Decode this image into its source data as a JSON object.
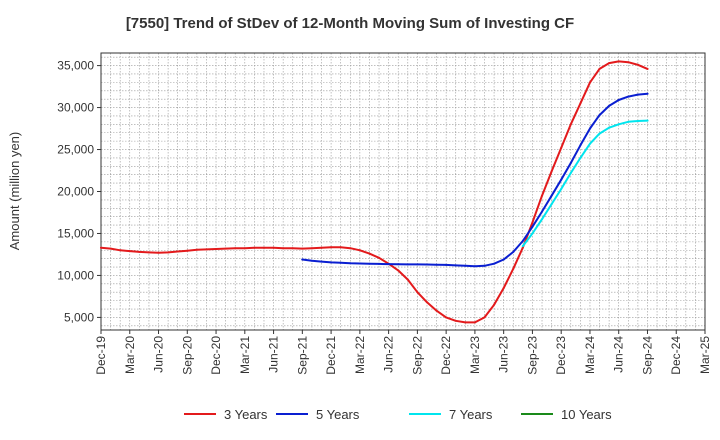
{
  "chart_data": {
    "type": "line",
    "title": "[7550]  Trend of StDev of 12-Month Moving Sum of Investing CF",
    "ylabel": "Amount (million yen)",
    "xlabel": "",
    "ylim": [
      3500,
      36500
    ],
    "yticks": [
      5000,
      10000,
      15000,
      20000,
      25000,
      30000,
      35000
    ],
    "ytick_labels": [
      "5,000",
      "10,000",
      "15,000",
      "20,000",
      "25,000",
      "30,000",
      "35,000"
    ],
    "categories": [
      "Dec-19",
      "Mar-20",
      "Jun-20",
      "Sep-20",
      "Dec-20",
      "Mar-21",
      "Jun-21",
      "Sep-21",
      "Dec-21",
      "Mar-22",
      "Jun-22",
      "Sep-22",
      "Dec-22",
      "Mar-23",
      "Jun-23",
      "Sep-23",
      "Dec-23",
      "Mar-24",
      "Jun-24",
      "Sep-24",
      "Dec-24",
      "Mar-25"
    ],
    "grid": true,
    "legend_position": "bottom",
    "series": [
      {
        "name": "3 Years",
        "color": "#e31a1c",
        "x": [
          "Dec-19",
          "Jan-20",
          "Feb-20",
          "Mar-20",
          "Apr-20",
          "May-20",
          "Jun-20",
          "Jul-20",
          "Aug-20",
          "Sep-20",
          "Oct-20",
          "Nov-20",
          "Dec-20",
          "Jan-21",
          "Feb-21",
          "Mar-21",
          "Apr-21",
          "May-21",
          "Jun-21",
          "Jul-21",
          "Aug-21",
          "Sep-21",
          "Oct-21",
          "Nov-21",
          "Dec-21",
          "Jan-22",
          "Feb-22",
          "Mar-22",
          "Apr-22",
          "May-22",
          "Jun-22",
          "Jul-22",
          "Aug-22",
          "Sep-22",
          "Oct-22",
          "Nov-22",
          "Dec-22",
          "Jan-23",
          "Feb-23",
          "Mar-23",
          "Apr-23",
          "May-23",
          "Jun-23",
          "Jul-23",
          "Aug-23",
          "Sep-23",
          "Oct-23",
          "Nov-23",
          "Dec-23",
          "Jan-24",
          "Feb-24",
          "Mar-24",
          "Apr-24",
          "May-24",
          "Jun-24",
          "Jul-24",
          "Aug-24",
          "Sep-24"
        ],
        "values": [
          13300,
          13200,
          13000,
          12900,
          12800,
          12750,
          12700,
          12750,
          12850,
          12950,
          13050,
          13100,
          13150,
          13200,
          13250,
          13250,
          13300,
          13300,
          13300,
          13250,
          13250,
          13200,
          13250,
          13300,
          13350,
          13350,
          13250,
          13000,
          12600,
          12100,
          11400,
          10600,
          9500,
          8000,
          6800,
          5800,
          5000,
          4600,
          4400,
          4400,
          5000,
          6500,
          8500,
          10800,
          13300,
          16300,
          19500,
          22400,
          25200,
          28000,
          30500,
          33000,
          34600,
          35300,
          35500,
          35400,
          35100,
          34600
        ]
      },
      {
        "name": "5 Years",
        "color": "#0a1fd1",
        "x": [
          "Sep-21",
          "Oct-21",
          "Nov-21",
          "Dec-21",
          "Jan-22",
          "Feb-22",
          "Mar-22",
          "Apr-22",
          "May-22",
          "Jun-22",
          "Jul-22",
          "Aug-22",
          "Sep-22",
          "Oct-22",
          "Nov-22",
          "Dec-22",
          "Jan-23",
          "Feb-23",
          "Mar-23",
          "Apr-23",
          "May-23",
          "Jun-23",
          "Jul-23",
          "Aug-23",
          "Sep-23",
          "Oct-23",
          "Nov-23",
          "Dec-23",
          "Jan-24",
          "Feb-24",
          "Mar-24",
          "Apr-24",
          "May-24",
          "Jun-24",
          "Jul-24",
          "Aug-24",
          "Sep-24"
        ],
        "values": [
          11900,
          11750,
          11650,
          11550,
          11500,
          11450,
          11420,
          11400,
          11380,
          11350,
          11330,
          11320,
          11310,
          11300,
          11280,
          11250,
          11200,
          11150,
          11100,
          11150,
          11400,
          11900,
          12800,
          14100,
          15800,
          17600,
          19500,
          21400,
          23400,
          25500,
          27500,
          29100,
          30200,
          30900,
          31300,
          31550,
          31650
        ]
      },
      {
        "name": "7 Years",
        "color": "#00e5ee",
        "x": [
          "Aug-23",
          "Sep-23",
          "Oct-23",
          "Nov-23",
          "Dec-23",
          "Jan-24",
          "Feb-24",
          "Mar-24",
          "Apr-24",
          "May-24",
          "Jun-24",
          "Jul-24",
          "Aug-24",
          "Sep-24"
        ],
        "values": [
          13500,
          15000,
          16700,
          18500,
          20300,
          22200,
          24000,
          25700,
          26900,
          27600,
          28000,
          28300,
          28400,
          28450
        ]
      },
      {
        "name": "10 Years",
        "color": "#1a8a1a",
        "x": [],
        "values": []
      }
    ]
  }
}
